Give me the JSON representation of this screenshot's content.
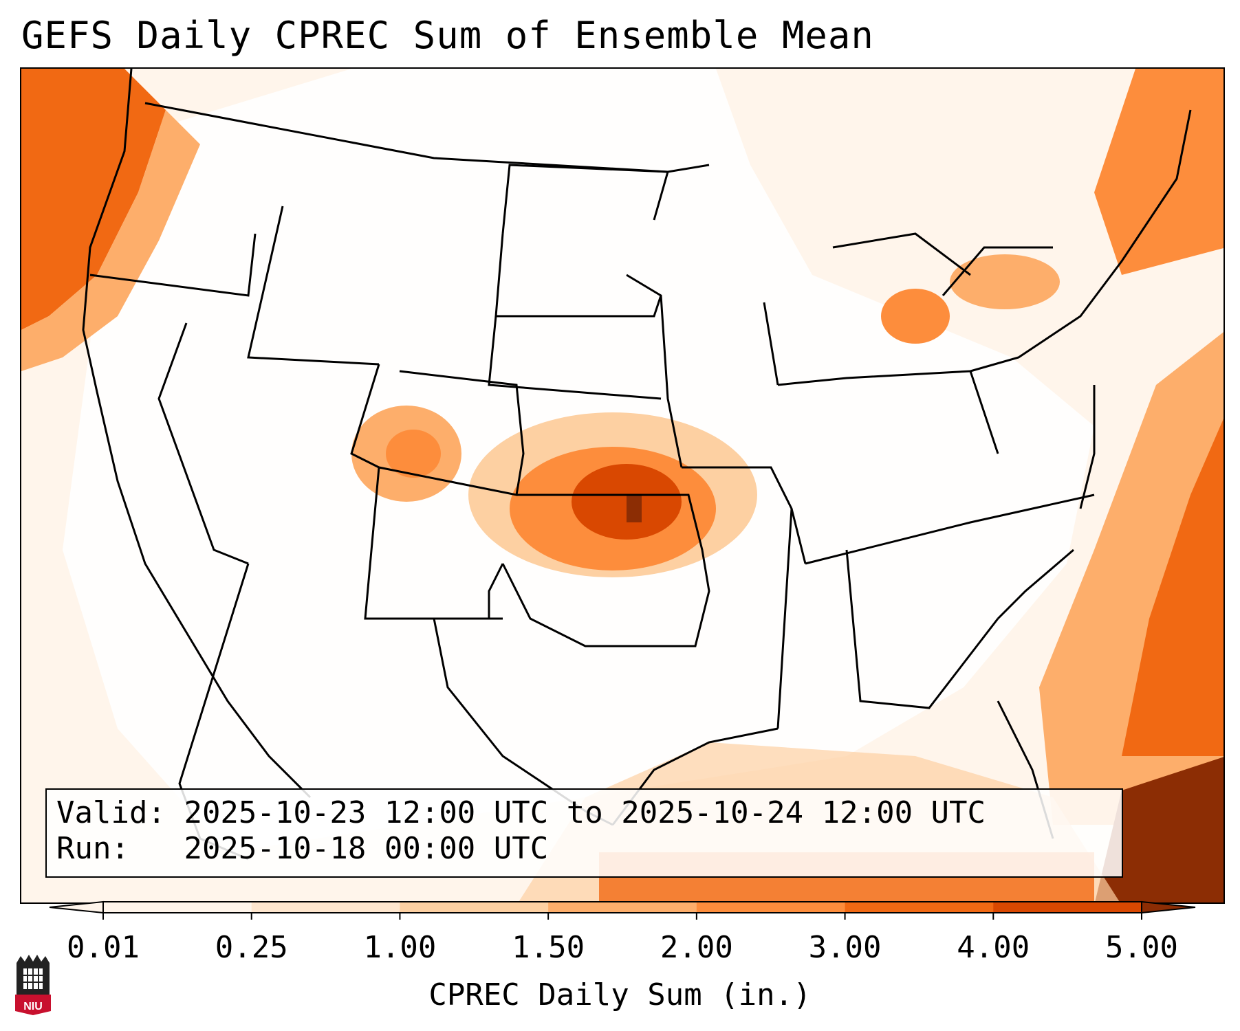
{
  "title": "GEFS Daily CPREC Sum of Ensemble Mean",
  "info": {
    "valid_label": "Valid:",
    "valid_value": "2025-10-23 12:00 UTC to 2025-10-24 12:00 UTC",
    "run_label": "Run:",
    "run_value": "2025-10-18 00:00 UTC"
  },
  "colorbar": {
    "label": "CPREC Daily Sum (in.)",
    "ticks": [
      "0.01",
      "0.25",
      "1.00",
      "1.50",
      "2.00",
      "3.00",
      "4.00",
      "5.00"
    ],
    "colors": [
      "#fff5eb",
      "#fee6ce",
      "#fdd0a2",
      "#fdae6b",
      "#fd8d3c",
      "#f16913",
      "#d94801",
      "#8c2d04"
    ],
    "extend": "both"
  },
  "logo": {
    "text": "NIU"
  }
}
